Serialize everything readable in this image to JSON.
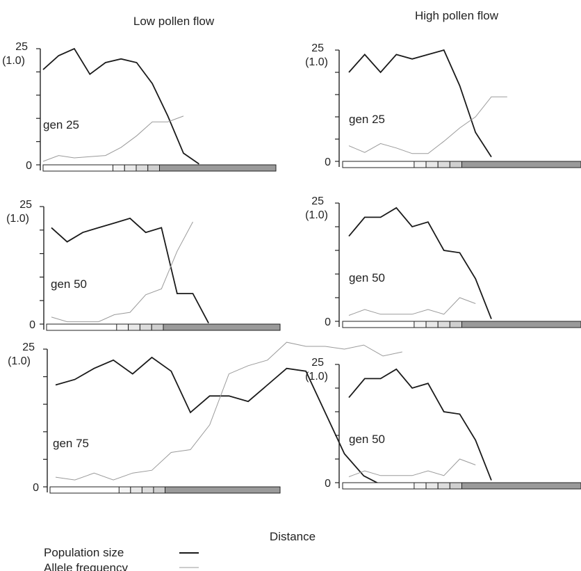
{
  "columns": [
    "Low pollen flow",
    "High pollen flow"
  ],
  "x_axis_label": "Distance",
  "legend": [
    {
      "label": "Population size",
      "color": "#1a1a1a"
    },
    {
      "label": "Allele frequency",
      "color": "#9a9a9a"
    }
  ],
  "axis_labels": {
    "top": "25",
    "top_alt": "(1.0)",
    "zero": "0"
  },
  "chart_data": [
    {
      "type": "line",
      "title": "gen 25",
      "column": "Low pollen flow",
      "x": [
        0,
        1,
        2,
        3,
        4,
        5,
        6,
        7,
        8,
        9,
        10,
        11,
        12,
        13
      ],
      "ylim": [
        0,
        25
      ],
      "series": [
        {
          "name": "Population size",
          "values": [
            20.5,
            23.5,
            25,
            19.5,
            22,
            22.8,
            22,
            17.5,
            10.5,
            2.5,
            0.2,
            null,
            null,
            null
          ]
        },
        {
          "name": "Allele frequency",
          "values": [
            0.03,
            0.08,
            0.06,
            0.07,
            0.08,
            0.15,
            0.25,
            0.37,
            0.37,
            0.42,
            null,
            null,
            null,
            null
          ]
        }
      ],
      "x_bar": {
        "pale_cells": 4,
        "light_cells": 4,
        "dark_cells": 14
      }
    },
    {
      "type": "line",
      "title": "gen 25",
      "column": "High pollen flow",
      "x": [
        0,
        1,
        2,
        3,
        4,
        5,
        6,
        7,
        8,
        9,
        10,
        11,
        12,
        13
      ],
      "ylim": [
        0,
        25
      ],
      "series": [
        {
          "name": "Population size",
          "values": [
            20,
            24,
            20,
            24,
            23,
            24,
            25,
            17,
            6.5,
            1,
            null,
            null,
            null,
            null
          ]
        },
        {
          "name": "Allele frequency",
          "values": [
            0.14,
            0.08,
            0.16,
            0.12,
            0.07,
            0.07,
            0.18,
            0.3,
            0.4,
            0.58,
            0.58,
            null,
            null,
            null
          ]
        }
      ],
      "x_bar": {
        "pale_cells": 4,
        "light_cells": 4,
        "dark_cells": 14
      }
    },
    {
      "type": "line",
      "title": "gen 50",
      "column": "Low pollen flow",
      "x": [
        0,
        1,
        2,
        3,
        4,
        5,
        6,
        7,
        8,
        9,
        10,
        11,
        12,
        13
      ],
      "ylim": [
        0,
        25
      ],
      "series": [
        {
          "name": "Population size",
          "values": [
            20.5,
            17.5,
            19.5,
            20.5,
            21.5,
            22.5,
            19.5,
            20.5,
            6.5,
            6.5,
            0.2,
            null,
            null,
            null
          ]
        },
        {
          "name": "Allele frequency",
          "values": [
            0.06,
            0.02,
            0.02,
            0.02,
            0.08,
            0.1,
            0.25,
            0.3,
            0.62,
            0.87,
            null,
            null,
            null,
            null
          ]
        }
      ],
      "x_bar": {
        "pale_cells": 4,
        "light_cells": 4,
        "dark_cells": 14
      }
    },
    {
      "type": "line",
      "title": "gen 50",
      "column": "High pollen flow",
      "x": [
        0,
        1,
        2,
        3,
        4,
        5,
        6,
        7,
        8,
        9,
        10,
        11,
        12,
        13
      ],
      "ylim": [
        0,
        25
      ],
      "series": [
        {
          "name": "Population size",
          "values": [
            18,
            22,
            22,
            24,
            20,
            21,
            15,
            14.5,
            9,
            0.5,
            null,
            null,
            null,
            null
          ]
        },
        {
          "name": "Allele frequency",
          "values": [
            0.05,
            0.1,
            0.06,
            0.06,
            0.06,
            0.1,
            0.06,
            0.2,
            0.15,
            null,
            null,
            null,
            null,
            null
          ]
        }
      ],
      "x_bar": {
        "pale_cells": 4,
        "light_cells": 4,
        "dark_cells": 14
      }
    },
    {
      "type": "line",
      "title": "gen 75",
      "column": "Low pollen flow",
      "x": [
        0,
        1,
        2,
        3,
        4,
        5,
        6,
        7,
        8,
        9,
        10,
        11,
        12,
        13,
        14,
        15,
        16,
        17,
        18
      ],
      "ylim": [
        0,
        25
      ],
      "series": [
        {
          "name": "Population size",
          "values": [
            18.5,
            19.5,
            21.5,
            23,
            20.5,
            23.5,
            21,
            13.5,
            16.5,
            16.5,
            15.5,
            18.5,
            21.5,
            21,
            13.5,
            6,
            2,
            0.2,
            null
          ]
        },
        {
          "name": "Allele frequency",
          "values": [
            0.07,
            0.05,
            0.1,
            0.05,
            0.1,
            0.12,
            0.25,
            0.27,
            0.45,
            0.82,
            0.88,
            0.92,
            1.05,
            1.02,
            1.02,
            1.0,
            1.03,
            0.95,
            0.98
          ]
        }
      ],
      "x_bar": {
        "pale_cells": 4,
        "light_cells": 4,
        "dark_cells": 14
      }
    },
    {
      "type": "line",
      "title": "gen 50",
      "column": "High pollen flow",
      "x": [
        0,
        1,
        2,
        3,
        4,
        5,
        6,
        7,
        8,
        9,
        10,
        11,
        12,
        13
      ],
      "ylim": [
        0,
        25
      ],
      "series": [
        {
          "name": "Population size",
          "values": [
            18,
            22,
            22,
            24,
            20,
            21,
            15,
            14.5,
            9,
            0.5,
            null,
            null,
            null,
            null
          ]
        },
        {
          "name": "Allele frequency",
          "values": [
            0.05,
            0.1,
            0.06,
            0.06,
            0.06,
            0.1,
            0.06,
            0.2,
            0.15,
            null,
            null,
            null,
            null,
            null
          ]
        }
      ],
      "x_bar": {
        "pale_cells": 4,
        "light_cells": 4,
        "dark_cells": 14
      }
    }
  ]
}
